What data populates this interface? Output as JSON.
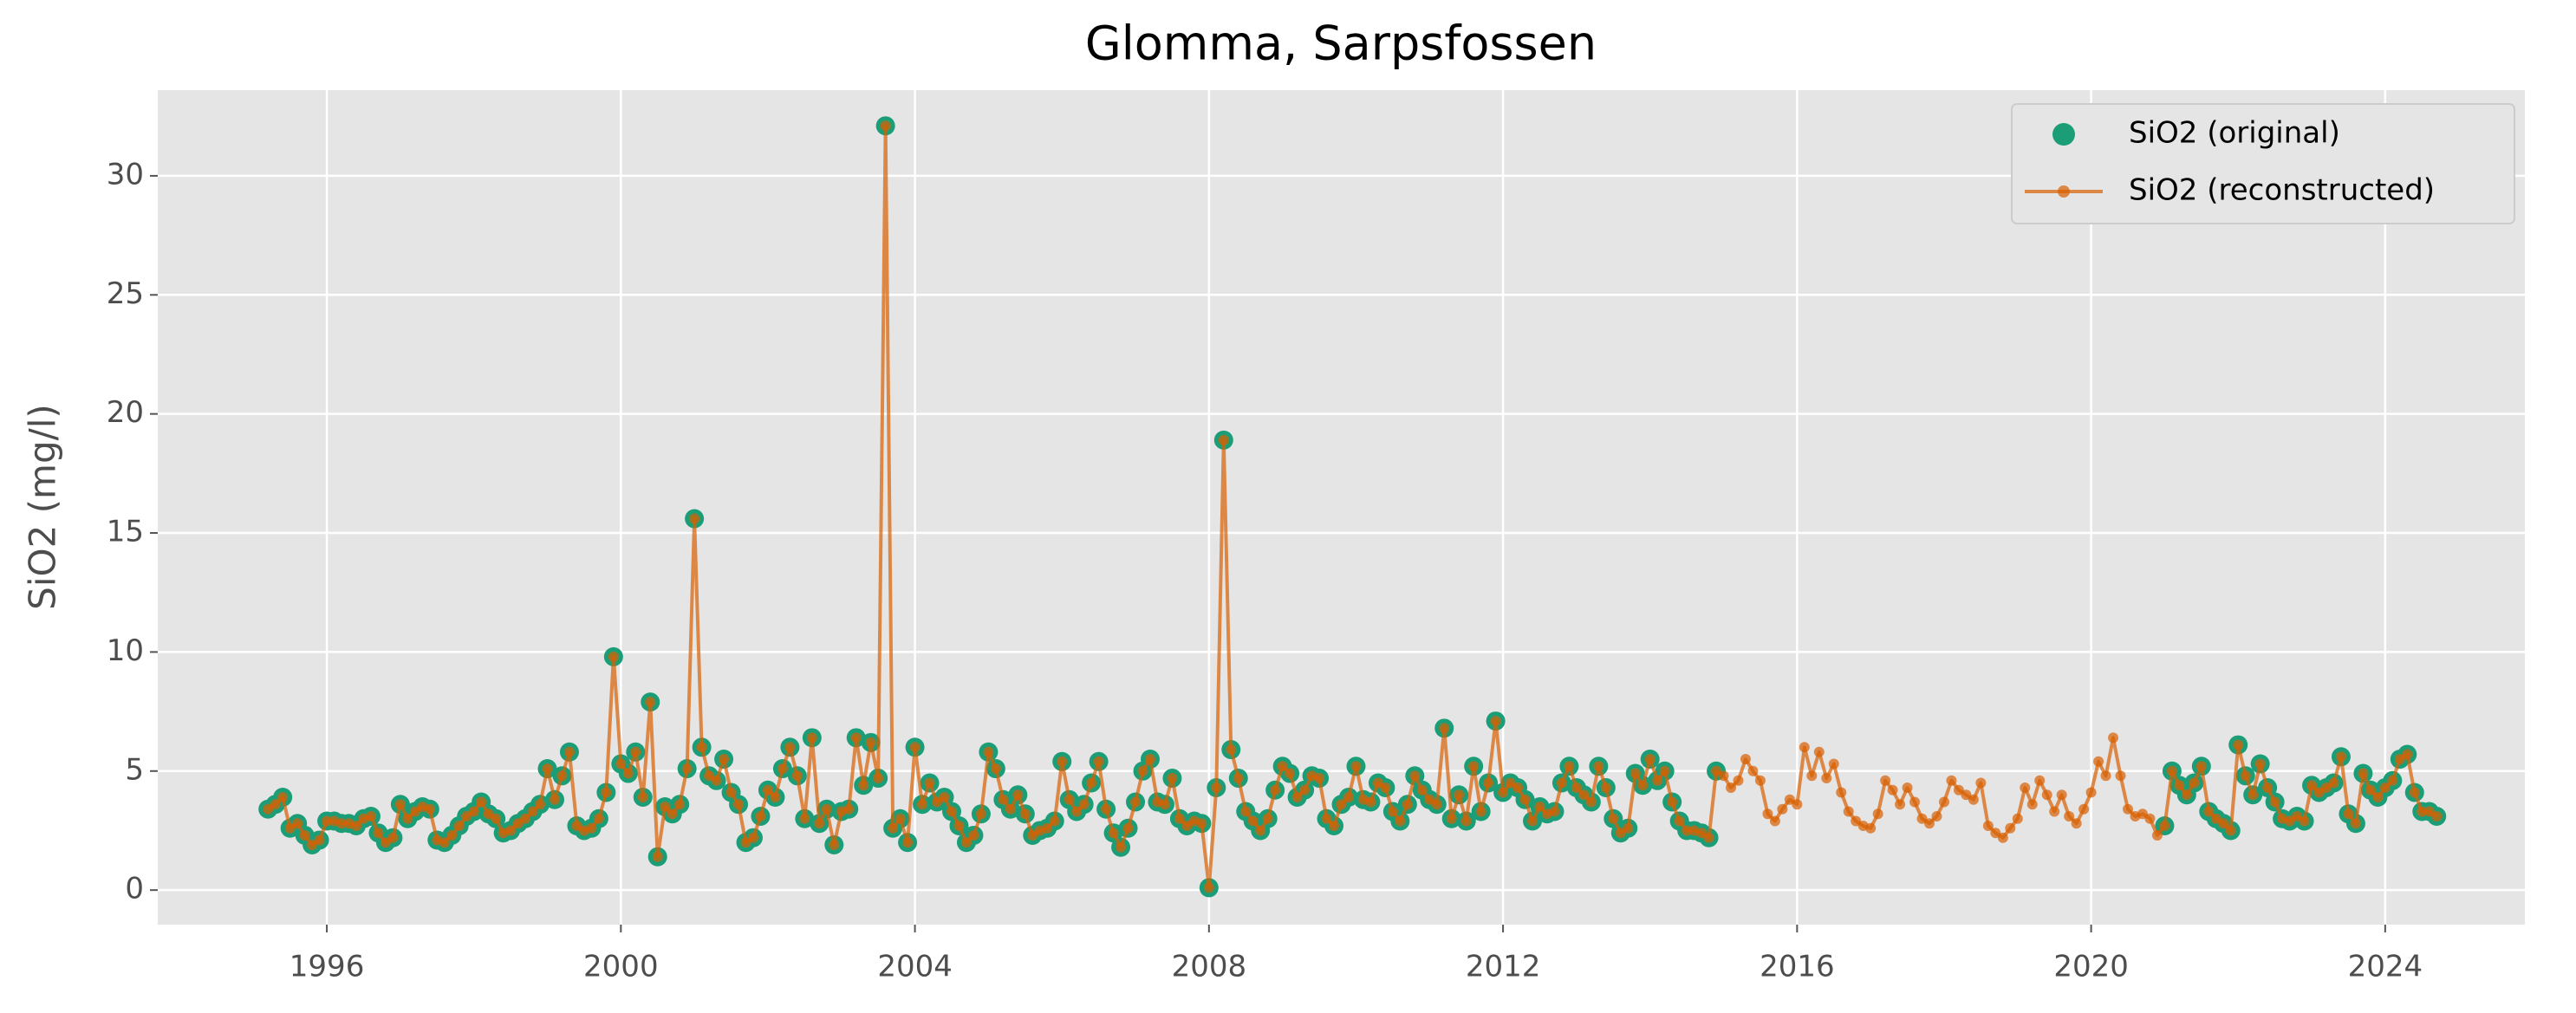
{
  "chart_data": {
    "type": "line",
    "title": "Glomma, Sarpsfossen",
    "y_label": "SiO2 (mg/l)",
    "xlim": [
      1993.7,
      2025.9
    ],
    "xticks": [
      1996,
      2000,
      2004,
      2008,
      2012,
      2016,
      2020,
      2024
    ],
    "ylim": [
      -1.45,
      33.6
    ],
    "yticks": [
      0,
      5,
      10,
      15,
      20,
      25,
      30
    ],
    "grid": true,
    "legend": "upper right",
    "x": [
      1995.2,
      1995.3,
      1995.4,
      1995.5,
      1995.6,
      1995.7,
      1995.8,
      1995.9,
      1996,
      1996.1,
      1996.2,
      1996.3,
      1996.4,
      1996.5,
      1996.6,
      1996.7,
      1996.8,
      1996.9,
      1997,
      1997.1,
      1997.2,
      1997.3,
      1997.4,
      1997.5,
      1997.6,
      1997.7,
      1997.8,
      1997.9,
      1998,
      1998.1,
      1998.2,
      1998.3,
      1998.4,
      1998.5,
      1998.6,
      1998.7,
      1998.8,
      1998.9,
      1999,
      1999.1,
      1999.2,
      1999.3,
      1999.4,
      1999.5,
      1999.6,
      1999.7,
      1999.8,
      1999.9,
      2000,
      2000.1,
      2000.2,
      2000.3,
      2000.4,
      2000.5,
      2000.6,
      2000.7,
      2000.8,
      2000.9,
      2001,
      2001.1,
      2001.2,
      2001.3,
      2001.4,
      2001.5,
      2001.6,
      2001.7,
      2001.8,
      2001.9,
      2002,
      2002.1,
      2002.2,
      2002.3,
      2002.4,
      2002.5,
      2002.6,
      2002.7,
      2002.8,
      2002.9,
      2003,
      2003.1,
      2003.2,
      2003.3,
      2003.4,
      2003.5,
      2003.6,
      2003.7,
      2003.8,
      2003.9,
      2004,
      2004.1,
      2004.2,
      2004.3,
      2004.4,
      2004.5,
      2004.6,
      2004.7,
      2004.8,
      2004.9,
      2005,
      2005.1,
      2005.2,
      2005.3,
      2005.4,
      2005.5,
      2005.6,
      2005.7,
      2005.8,
      2005.9,
      2006,
      2006.1,
      2006.2,
      2006.3,
      2006.4,
      2006.5,
      2006.6,
      2006.7,
      2006.8,
      2006.9,
      2007,
      2007.1,
      2007.2,
      2007.3,
      2007.4,
      2007.5,
      2007.6,
      2007.7,
      2007.8,
      2007.9,
      2008,
      2008.1,
      2008.2,
      2008.3,
      2008.4,
      2008.5,
      2008.6,
      2008.7,
      2008.8,
      2008.9,
      2009,
      2009.1,
      2009.2,
      2009.3,
      2009.4,
      2009.5,
      2009.6,
      2009.7,
      2009.8,
      2009.9,
      2010,
      2010.1,
      2010.2,
      2010.3,
      2010.4,
      2010.5,
      2010.6,
      2010.7,
      2010.8,
      2010.9,
      2011,
      2011.1,
      2011.2,
      2011.3,
      2011.4,
      2011.5,
      2011.6,
      2011.7,
      2011.8,
      2011.9,
      2012,
      2012.1,
      2012.2,
      2012.3,
      2012.4,
      2012.5,
      2012.6,
      2012.7,
      2012.8,
      2012.9,
      2013,
      2013.1,
      2013.2,
      2013.3,
      2013.4,
      2013.5,
      2013.6,
      2013.7,
      2013.8,
      2013.9,
      2014,
      2014.1,
      2014.2,
      2014.3,
      2014.4,
      2014.5,
      2014.6,
      2014.7,
      2014.8,
      2014.9,
      2015,
      2015.1,
      2015.2,
      2015.3,
      2015.4,
      2015.5,
      2015.6,
      2015.7,
      2015.8,
      2015.9,
      2016,
      2016.1,
      2016.2,
      2016.3,
      2016.4,
      2016.5,
      2016.6,
      2016.7,
      2016.8,
      2016.9,
      2017,
      2017.1,
      2017.2,
      2017.3,
      2017.4,
      2017.5,
      2017.6,
      2017.7,
      2017.8,
      2017.9,
      2018,
      2018.1,
      2018.2,
      2018.3,
      2018.4,
      2018.5,
      2018.6,
      2018.7,
      2018.8,
      2018.9,
      2019,
      2019.1,
      2019.2,
      2019.3,
      2019.4,
      2019.5,
      2019.6,
      2019.7,
      2019.8,
      2019.9,
      2020,
      2020.1,
      2020.2,
      2020.3,
      2020.4,
      2020.5,
      2020.6,
      2020.7,
      2020.8,
      2020.9,
      2021,
      2021.1,
      2021.2,
      2021.3,
      2021.4,
      2021.5,
      2021.6,
      2021.7,
      2021.8,
      2021.9,
      2022,
      2022.1,
      2022.2,
      2022.3,
      2022.4,
      2022.5,
      2022.6,
      2022.7,
      2022.8,
      2022.9,
      2023,
      2023.1,
      2023.2,
      2023.3,
      2023.4,
      2023.5,
      2023.6,
      2023.7,
      2023.8,
      2023.9,
      2024,
      2024.1,
      2024.2,
      2024.3,
      2024.4,
      2024.5,
      2024.6,
      2024.7
    ],
    "series": [
      {
        "name": "SiO2 (original)",
        "color": "#1b9e77",
        "style": "markers",
        "values": [
          3.4,
          3.6,
          3.9,
          2.6,
          2.8,
          2.3,
          1.9,
          2.1,
          2.9,
          2.9,
          2.8,
          2.8,
          2.7,
          3.0,
          3.1,
          2.4,
          2.0,
          2.2,
          3.6,
          3.0,
          3.3,
          3.5,
          3.4,
          2.1,
          2.0,
          2.3,
          2.7,
          3.1,
          3.3,
          3.7,
          3.2,
          3.0,
          2.4,
          2.5,
          2.8,
          3.0,
          3.3,
          3.6,
          5.1,
          3.8,
          4.8,
          5.8,
          2.7,
          2.5,
          2.6,
          3.0,
          4.1,
          9.8,
          5.3,
          4.9,
          5.8,
          3.9,
          7.9,
          1.4,
          3.5,
          3.2,
          3.6,
          5.1,
          15.6,
          6.0,
          4.8,
          4.6,
          5.5,
          4.1,
          3.6,
          2.0,
          2.2,
          3.1,
          4.2,
          3.9,
          5.1,
          6.0,
          4.8,
          3.0,
          6.4,
          2.8,
          3.4,
          1.9,
          3.3,
          3.4,
          6.4,
          4.4,
          6.2,
          4.7,
          32.1,
          2.6,
          3.0,
          2.0,
          6.0,
          3.6,
          4.5,
          3.7,
          3.9,
          3.3,
          2.7,
          2.0,
          2.3,
          3.2,
          5.8,
          5.1,
          3.8,
          3.4,
          4.0,
          3.2,
          2.3,
          2.5,
          2.6,
          2.9,
          5.4,
          3.8,
          3.3,
          3.6,
          4.5,
          5.4,
          3.4,
          2.4,
          1.8,
          2.6,
          3.7,
          5.0,
          5.5,
          3.7,
          3.6,
          4.7,
          3.0,
          2.7,
          2.9,
          2.8,
          0.1,
          4.3,
          18.9,
          5.9,
          4.7,
          3.3,
          2.9,
          2.5,
          3.0,
          4.2,
          5.2,
          4.9,
          3.9,
          4.2,
          4.8,
          4.7,
          3.0,
          2.7,
          3.6,
          3.9,
          5.2,
          3.8,
          3.7,
          4.5,
          4.3,
          3.3,
          2.9,
          3.6,
          4.8,
          4.2,
          3.8,
          3.6,
          6.8,
          3.0,
          4.0,
          2.9,
          5.2,
          3.3,
          4.5,
          7.1,
          4.1,
          4.5,
          4.3,
          3.8,
          2.9,
          3.5,
          3.2,
          3.3,
          4.5,
          5.2,
          4.3,
          4.0,
          3.7,
          5.2,
          4.3,
          3.0,
          2.4,
          2.6,
          4.9,
          4.4,
          5.5,
          4.6,
          5.0,
          3.7,
          2.9,
          2.5,
          2.5,
          2.4,
          2.2,
          5.0,
          null,
          null,
          null,
          null,
          null,
          null,
          null,
          null,
          null,
          null,
          null,
          null,
          null,
          null,
          null,
          null,
          null,
          null,
          null,
          null,
          null,
          null,
          null,
          null,
          null,
          null,
          null,
          null,
          null,
          null,
          null,
          null,
          null,
          null,
          null,
          null,
          null,
          null,
          null,
          null,
          null,
          null,
          null,
          null,
          null,
          null,
          null,
          null,
          null,
          null,
          null,
          null,
          null,
          null,
          null,
          null,
          null,
          null,
          null,
          null,
          2.7,
          5.0,
          4.4,
          4.0,
          4.5,
          5.2,
          3.3,
          3.0,
          2.8,
          2.5,
          6.1,
          4.8,
          4.0,
          5.3,
          4.3,
          3.7,
          3.0,
          2.9,
          3.1,
          2.9,
          4.4,
          4.1,
          4.3,
          4.5,
          5.6,
          3.2,
          2.8,
          4.9,
          4.2,
          3.9,
          4.3,
          4.6,
          5.5,
          5.7,
          4.1,
          3.3,
          3.3,
          3.1
        ]
      },
      {
        "name": "SiO2 (reconstructed)",
        "color": "#d95f02",
        "style": "line-markers",
        "values": [
          3.4,
          3.6,
          3.9,
          2.6,
          2.8,
          2.3,
          1.9,
          2.1,
          2.9,
          2.9,
          2.8,
          2.8,
          2.7,
          3.0,
          3.1,
          2.4,
          2.0,
          2.2,
          3.6,
          3.0,
          3.3,
          3.5,
          3.4,
          2.1,
          2.0,
          2.3,
          2.7,
          3.1,
          3.3,
          3.7,
          3.2,
          3.0,
          2.4,
          2.5,
          2.8,
          3.0,
          3.3,
          3.6,
          5.1,
          3.8,
          4.8,
          5.8,
          2.7,
          2.5,
          2.6,
          3.0,
          4.1,
          9.8,
          5.3,
          4.9,
          5.8,
          3.9,
          7.9,
          1.4,
          3.5,
          3.2,
          3.6,
          5.1,
          15.6,
          6.0,
          4.8,
          4.6,
          5.5,
          4.1,
          3.6,
          2.0,
          2.2,
          3.1,
          4.2,
          3.9,
          5.1,
          6.0,
          4.8,
          3.0,
          6.4,
          2.8,
          3.4,
          1.9,
          3.3,
          3.4,
          6.4,
          4.4,
          6.2,
          4.7,
          32.1,
          2.6,
          3.0,
          2.0,
          6.0,
          3.6,
          4.5,
          3.7,
          3.9,
          3.3,
          2.7,
          2.0,
          2.3,
          3.2,
          5.8,
          5.1,
          3.8,
          3.4,
          4.0,
          3.2,
          2.3,
          2.5,
          2.6,
          2.9,
          5.4,
          3.8,
          3.3,
          3.6,
          4.5,
          5.4,
          3.4,
          2.4,
          1.8,
          2.6,
          3.7,
          5.0,
          5.5,
          3.7,
          3.6,
          4.7,
          3.0,
          2.7,
          2.9,
          2.8,
          0.1,
          4.3,
          18.9,
          5.9,
          4.7,
          3.3,
          2.9,
          2.5,
          3.0,
          4.2,
          5.2,
          4.9,
          3.9,
          4.2,
          4.8,
          4.7,
          3.0,
          2.7,
          3.6,
          3.9,
          5.2,
          3.8,
          3.7,
          4.5,
          4.3,
          3.3,
          2.9,
          3.6,
          4.8,
          4.2,
          3.8,
          3.6,
          6.8,
          3.0,
          4.0,
          2.9,
          5.2,
          3.3,
          4.5,
          7.1,
          4.1,
          4.5,
          4.3,
          3.8,
          2.9,
          3.5,
          3.2,
          3.3,
          4.5,
          5.2,
          4.3,
          4.0,
          3.7,
          5.2,
          4.3,
          3.0,
          2.4,
          2.6,
          4.9,
          4.4,
          5.5,
          4.6,
          5.0,
          3.7,
          2.9,
          2.5,
          2.5,
          2.4,
          2.2,
          5.0,
          4.8,
          4.3,
          4.6,
          5.5,
          5.0,
          4.6,
          3.2,
          2.9,
          3.4,
          3.8,
          3.6,
          6.0,
          4.8,
          5.8,
          4.7,
          5.3,
          4.1,
          3.3,
          2.9,
          2.7,
          2.6,
          3.2,
          4.6,
          4.2,
          3.6,
          4.3,
          3.7,
          3.0,
          2.8,
          3.1,
          3.7,
          4.6,
          4.2,
          4.0,
          3.8,
          4.5,
          2.7,
          2.4,
          2.2,
          2.6,
          3.0,
          4.3,
          3.6,
          4.6,
          4.0,
          3.3,
          4.0,
          3.1,
          2.8,
          3.4,
          4.1,
          5.4,
          4.8,
          6.4,
          4.8,
          3.4,
          3.1,
          3.2,
          3.0,
          2.3,
          2.7,
          5.0,
          4.4,
          4.0,
          4.5,
          5.2,
          3.3,
          3.0,
          2.8,
          2.5,
          6.1,
          4.8,
          4.0,
          5.3,
          4.3,
          3.7,
          3.0,
          2.9,
          3.1,
          2.9,
          4.4,
          4.1,
          4.3,
          4.5,
          5.6,
          3.2,
          2.8,
          4.9,
          4.2,
          3.9,
          4.3,
          4.6,
          5.5,
          5.7,
          4.1,
          3.3,
          3.3,
          3.1
        ]
      }
    ]
  }
}
